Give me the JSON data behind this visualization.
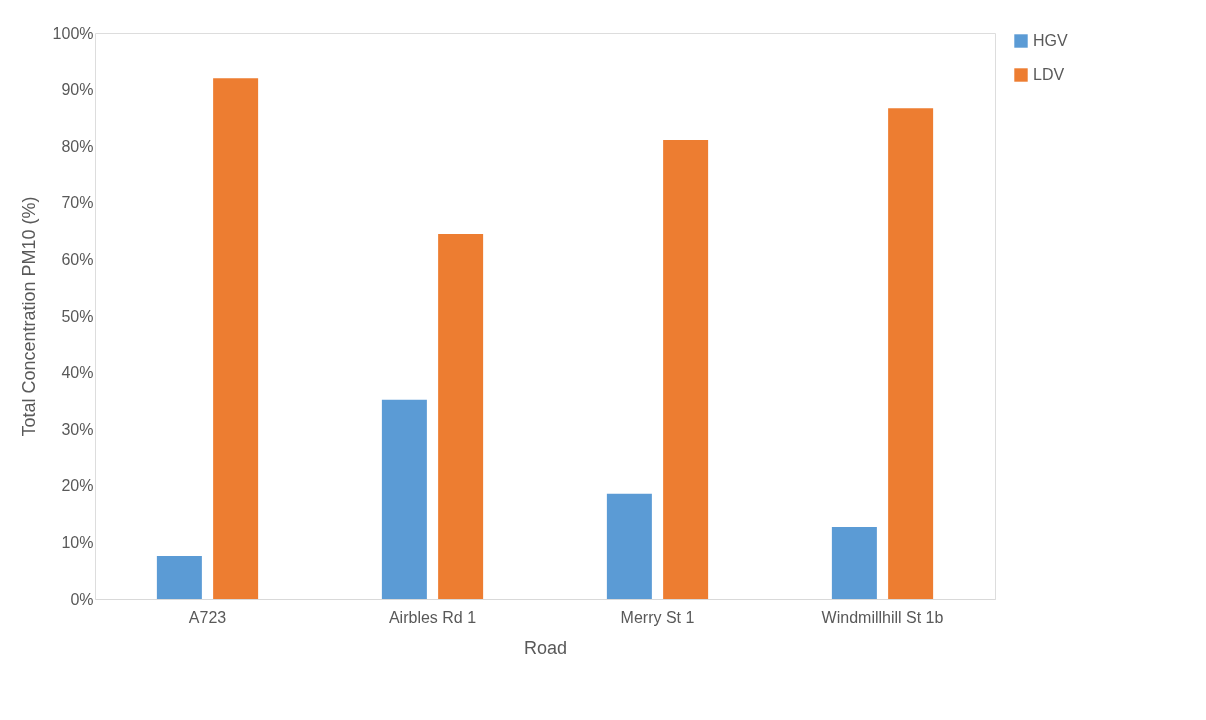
{
  "chart_data": {
    "type": "bar",
    "xlabel": "Road",
    "ylabel": "Total Concentration PM10 (%)",
    "categories": [
      "A723",
      "Airbles Rd 1",
      "Merry St 1",
      "Windmillhill St 1b"
    ],
    "series": [
      {
        "name": "HGV",
        "color": "#5b9bd5",
        "values": [
          7.6,
          35.2,
          18.6,
          12.7
        ]
      },
      {
        "name": "LDV",
        "color": "#ed7d31",
        "values": [
          92.0,
          64.5,
          81.1,
          86.7
        ]
      }
    ],
    "ylim": [
      0,
      100
    ],
    "yticks": [
      {
        "value": 0,
        "label": "0%"
      },
      {
        "value": 10,
        "label": "10%"
      },
      {
        "value": 20,
        "label": "20%"
      },
      {
        "value": 30,
        "label": "30%"
      },
      {
        "value": 40,
        "label": "40%"
      },
      {
        "value": 50,
        "label": "50%"
      },
      {
        "value": 60,
        "label": "60%"
      },
      {
        "value": 70,
        "label": "70%"
      },
      {
        "value": 80,
        "label": "80%"
      },
      {
        "value": 90,
        "label": "90%"
      },
      {
        "value": 100,
        "label": "100%"
      }
    ],
    "grid": false,
    "legend": "right"
  }
}
